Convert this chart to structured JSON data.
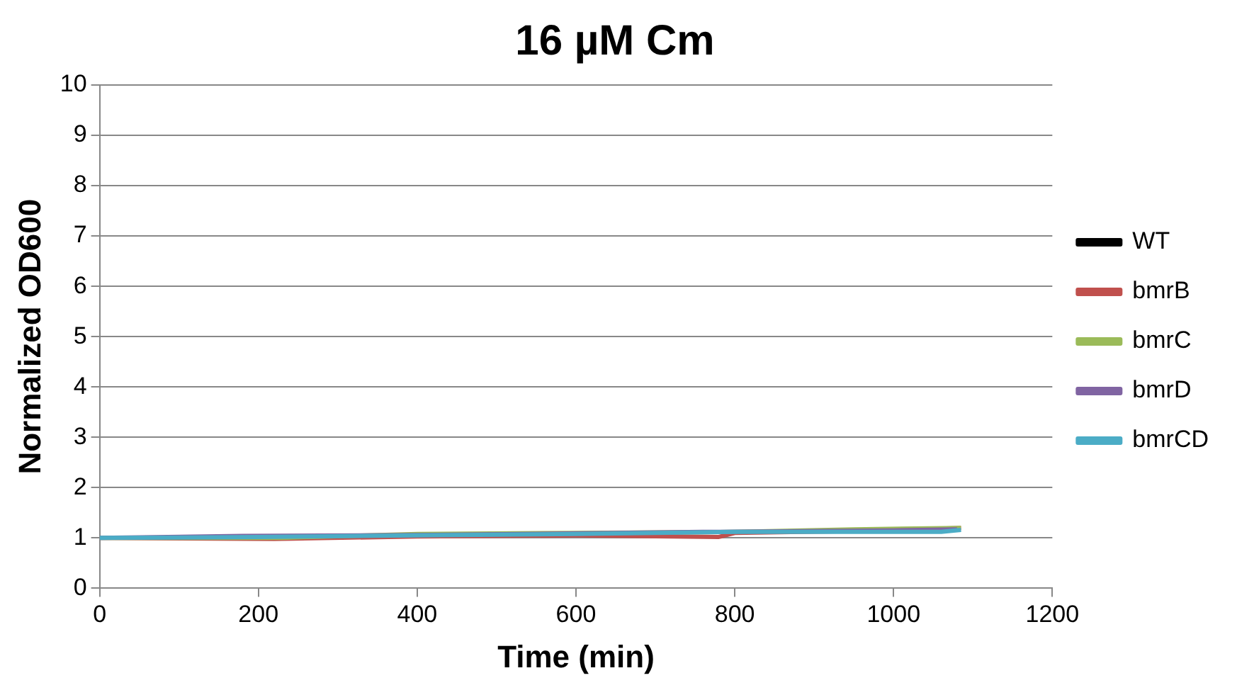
{
  "chart_data": {
    "type": "line",
    "title": "16 µM Cm",
    "xlabel": "Time (min)",
    "ylabel": "Normalized OD600",
    "xlim": [
      0,
      1200
    ],
    "xticks": [
      0,
      200,
      400,
      600,
      800,
      1000,
      1200
    ],
    "ylim": [
      0,
      10
    ],
    "yticks": [
      0,
      1,
      2,
      3,
      4,
      5,
      6,
      7,
      8,
      9,
      10
    ],
    "grid": "y",
    "legend": "right",
    "marker": "none",
    "line_style": "solid",
    "series": [
      {
        "name": "WT",
        "color": "#000000"
      },
      {
        "name": "bmrB",
        "color": "#c0504d",
        "x": [
          0,
          220,
          400,
          600,
          780,
          800,
          1000,
          1085
        ],
        "values": [
          1.0,
          0.98,
          1.03,
          1.05,
          1.02,
          1.1,
          1.15,
          1.2
        ]
      },
      {
        "name": "bmrC",
        "color": "#9bbb59",
        "x": [
          0,
          230,
          400,
          600,
          800,
          950,
          1085
        ],
        "values": [
          1.0,
          1.0,
          1.08,
          1.1,
          1.12,
          1.17,
          1.2
        ]
      },
      {
        "name": "bmrD",
        "color": "#8064a2",
        "x": [
          0,
          180,
          420,
          760,
          1000,
          1080
        ],
        "values": [
          1.0,
          1.04,
          1.06,
          1.12,
          1.15,
          1.17
        ]
      },
      {
        "name": "bmrCD",
        "color": "#4bacc6",
        "x": [
          0,
          200,
          400,
          600,
          800,
          1060,
          1085
        ],
        "values": [
          1.0,
          1.02,
          1.05,
          1.08,
          1.12,
          1.12,
          1.16
        ]
      }
    ]
  }
}
